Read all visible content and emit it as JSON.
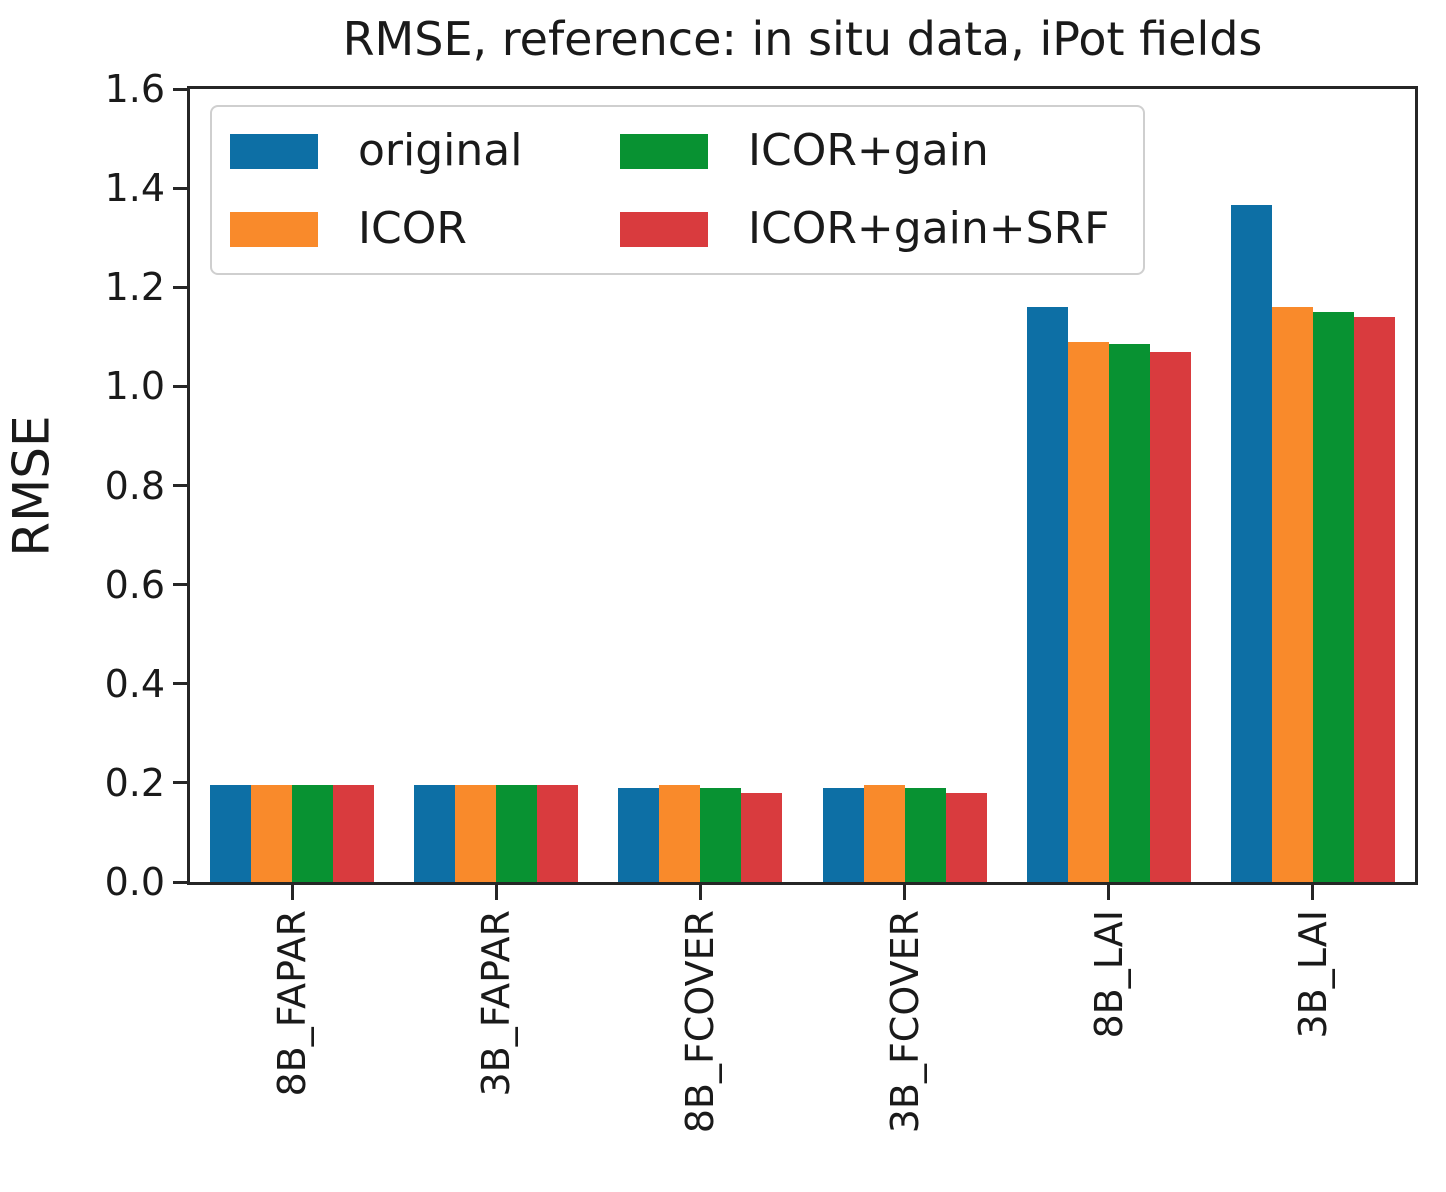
{
  "chart_data": {
    "type": "bar",
    "title": "RMSE, reference: in situ data, iPot fields",
    "ylabel": "RMSE",
    "xlabel": "",
    "ylim": [
      0.0,
      1.6
    ],
    "y_ticks": [
      "0.0",
      "0.2",
      "0.4",
      "0.6",
      "0.8",
      "1.0",
      "1.2",
      "1.4",
      "1.6"
    ],
    "grid": false,
    "legend_position": "upper-left",
    "legend_columns": 2,
    "categories": [
      "8B_FAPAR",
      "3B_FAPAR",
      "8B_FCOVER",
      "3B_FCOVER",
      "8B_LAI",
      "3B_LAI"
    ],
    "series": [
      {
        "name": "original",
        "color": "#0d6fa5",
        "values": [
          0.195,
          0.195,
          0.19,
          0.19,
          1.16,
          1.365
        ]
      },
      {
        "name": "ICOR",
        "color": "#f98a2b",
        "values": [
          0.195,
          0.195,
          0.196,
          0.196,
          1.09,
          1.16
        ]
      },
      {
        "name": "ICOR+gain",
        "color": "#089232",
        "values": [
          0.195,
          0.195,
          0.19,
          0.19,
          1.085,
          1.15
        ]
      },
      {
        "name": "ICOR+gain+SRF",
        "color": "#d93b3e",
        "values": [
          0.195,
          0.195,
          0.18,
          0.18,
          1.07,
          1.14
        ]
      }
    ]
  },
  "colors": {
    "axis": "#262626",
    "text": "#1a1a1a",
    "legend_border": "#cfcfcf",
    "background": "#ffffff"
  }
}
